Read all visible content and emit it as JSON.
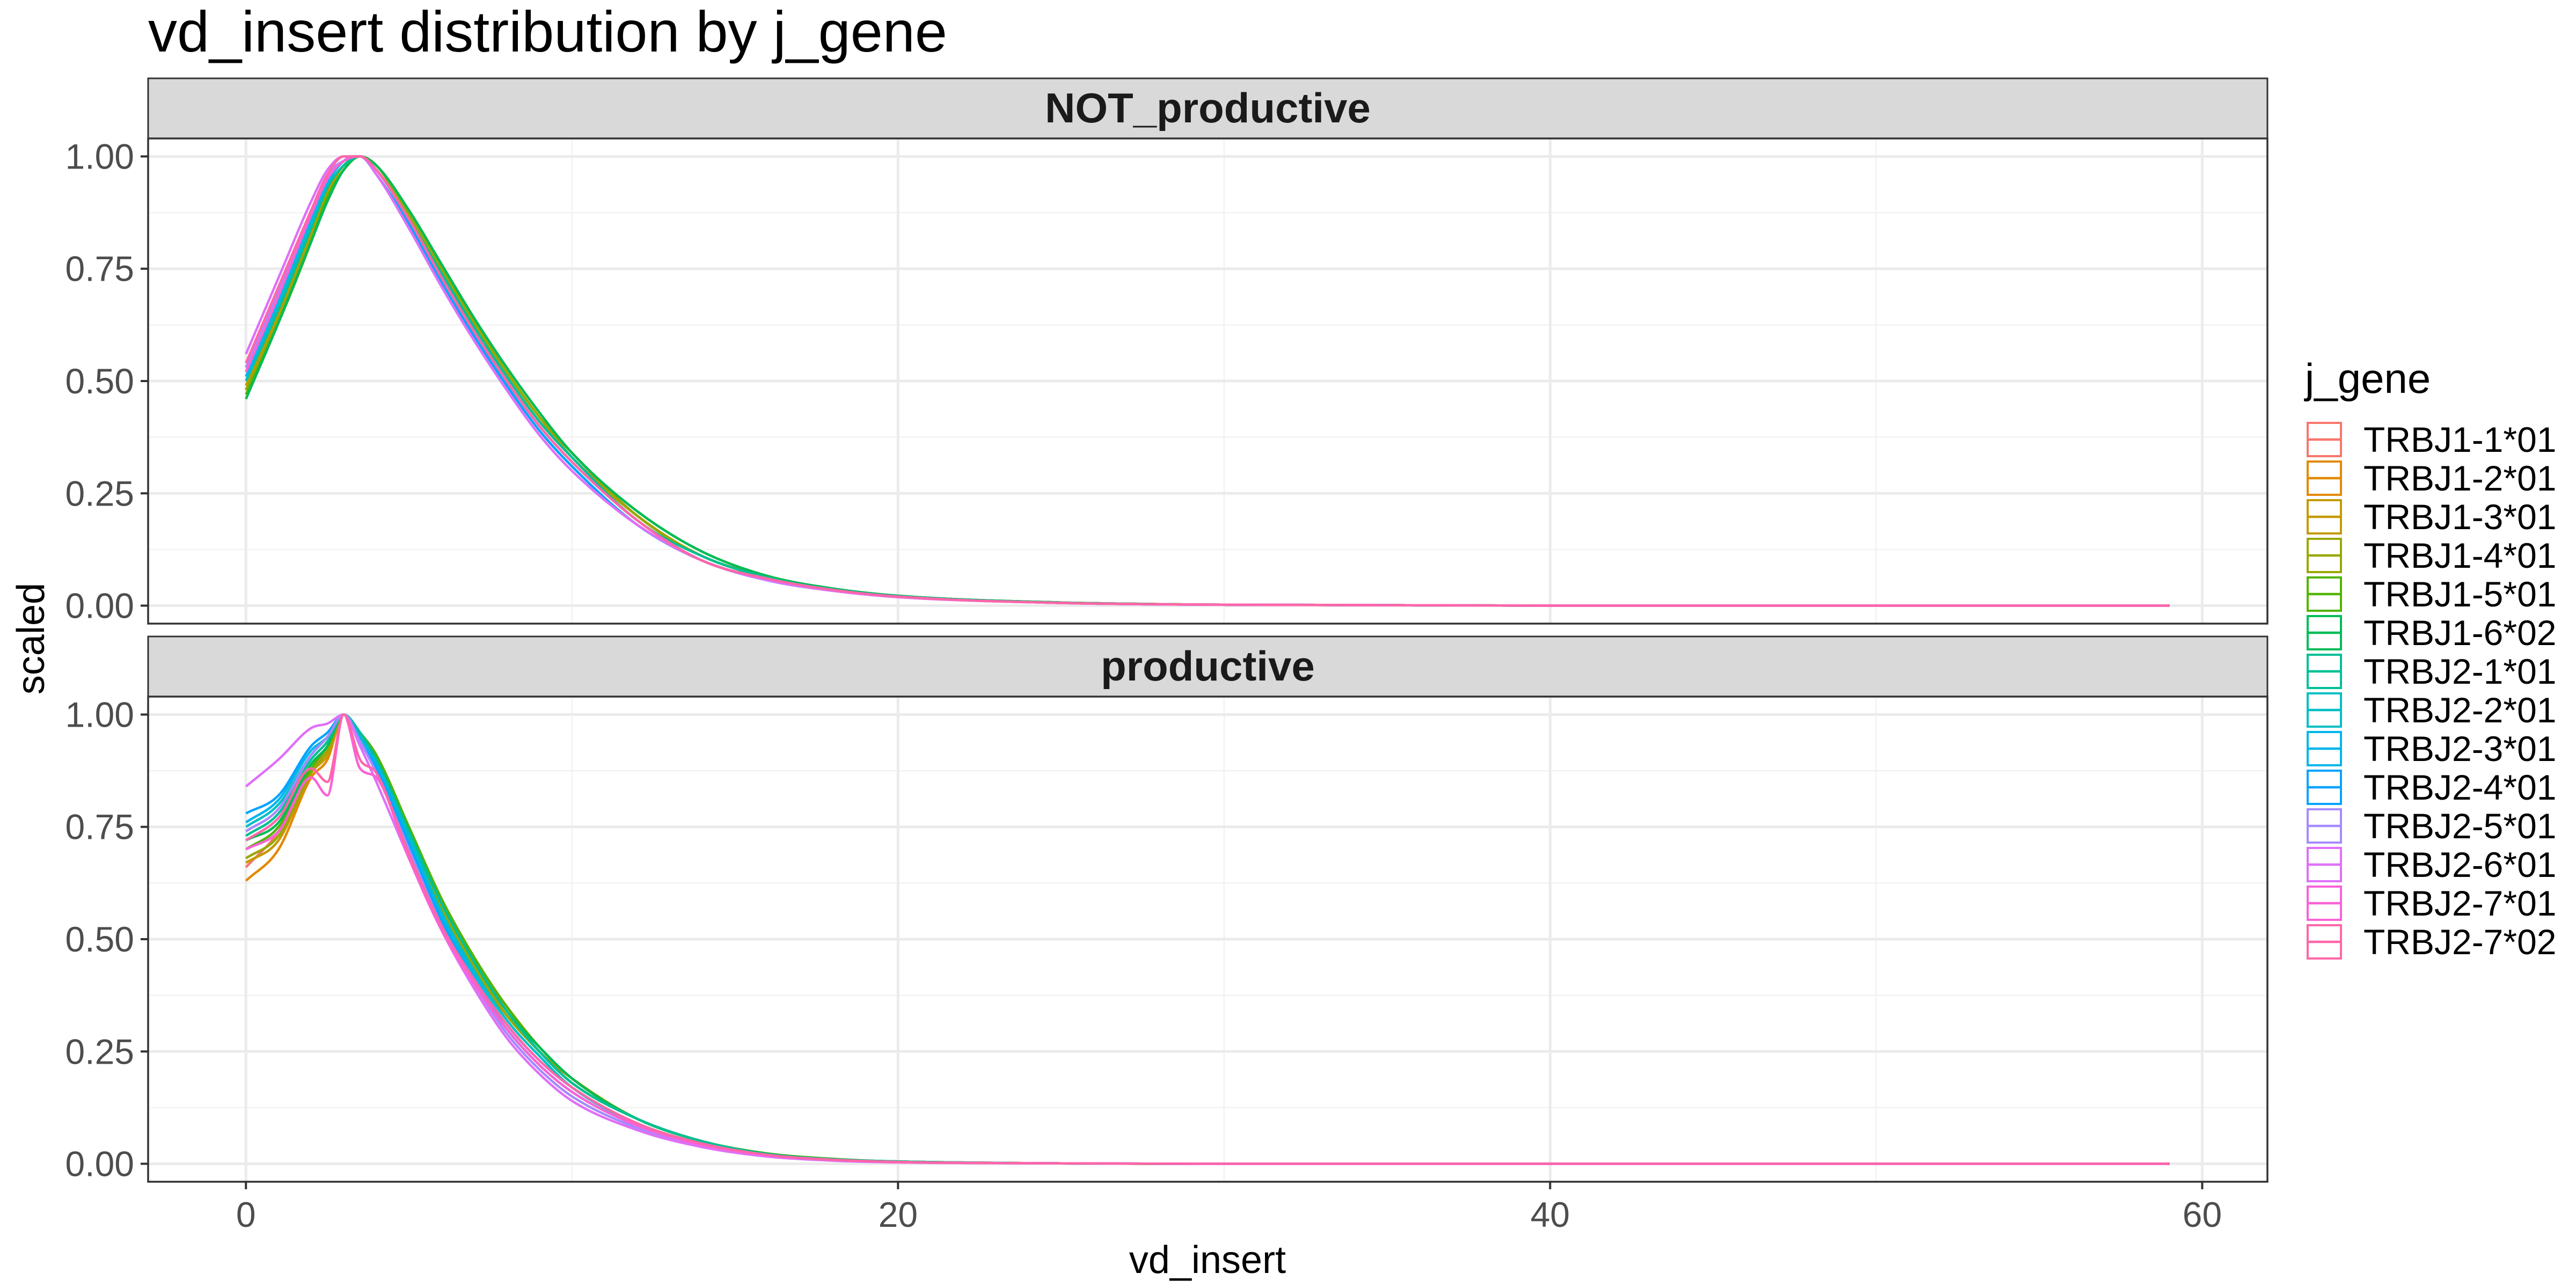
{
  "chart_data": {
    "type": "line",
    "title": "vd_insert distribution by j_gene",
    "xlabel": "vd_insert",
    "ylabel": "scaled",
    "xlim": [
      -3,
      62
    ],
    "ylim": [
      -0.04,
      1.04
    ],
    "x_ticks": [
      0,
      20,
      40,
      60
    ],
    "x_tick_labels": [
      "0",
      "20",
      "40",
      "60"
    ],
    "y_ticks": [
      0,
      0.25,
      0.5,
      0.75,
      1.0
    ],
    "y_tick_labels": [
      "0.00",
      "0.25",
      "0.50",
      "0.75",
      "1.00"
    ],
    "grid": true,
    "legend": {
      "title": "j_gene",
      "position": "right",
      "entries": [
        "TRBJ1-1*01",
        "TRBJ1-2*01",
        "TRBJ1-3*01",
        "TRBJ1-4*01",
        "TRBJ1-5*01",
        "TRBJ1-6*02",
        "TRBJ2-1*01",
        "TRBJ2-2*01",
        "TRBJ2-3*01",
        "TRBJ2-4*01",
        "TRBJ2-5*01",
        "TRBJ2-6*01",
        "TRBJ2-7*01",
        "TRBJ2-7*02"
      ]
    },
    "series_colors": [
      "#F8766D",
      "#E38900",
      "#C49A00",
      "#99A800",
      "#53B400",
      "#00BC56",
      "#00C094",
      "#00BFC4",
      "#00B6EB",
      "#06A4FF",
      "#A58AFF",
      "#DF70F8",
      "#FB61D7",
      "#FF66A8"
    ],
    "x": [
      0,
      1,
      2,
      2.5,
      3,
      3.5,
      4,
      5,
      6,
      7,
      8,
      9,
      10,
      12,
      14,
      16,
      18,
      20,
      25,
      30,
      40,
      50,
      59
    ],
    "facets": [
      {
        "label": "NOT_productive",
        "series": [
          {
            "name": "TRBJ1-1*01",
            "values": [
              0.49,
              0.66,
              0.84,
              0.93,
              0.98,
              1.0,
              0.97,
              0.87,
              0.75,
              0.63,
              0.52,
              0.42,
              0.34,
              0.2,
              0.11,
              0.065,
              0.038,
              0.022,
              0.007,
              0.002,
              0.0,
              0.0,
              0.0
            ]
          },
          {
            "name": "TRBJ1-2*01",
            "values": [
              0.48,
              0.65,
              0.83,
              0.92,
              0.98,
              1.0,
              0.97,
              0.86,
              0.74,
              0.62,
              0.51,
              0.41,
              0.33,
              0.2,
              0.11,
              0.063,
              0.037,
              0.021,
              0.007,
              0.002,
              0.0,
              0.0,
              0.0
            ]
          },
          {
            "name": "TRBJ1-3*01",
            "values": [
              0.49,
              0.65,
              0.83,
              0.92,
              0.98,
              1.0,
              0.98,
              0.87,
              0.75,
              0.63,
              0.52,
              0.42,
              0.33,
              0.2,
              0.11,
              0.064,
              0.037,
              0.021,
              0.007,
              0.002,
              0.0,
              0.0,
              0.0
            ]
          },
          {
            "name": "TRBJ1-4*01",
            "values": [
              0.48,
              0.64,
              0.82,
              0.91,
              0.97,
              1.0,
              0.98,
              0.87,
              0.75,
              0.63,
              0.52,
              0.42,
              0.34,
              0.2,
              0.11,
              0.065,
              0.038,
              0.022,
              0.007,
              0.002,
              0.0,
              0.0,
              0.0
            ]
          },
          {
            "name": "TRBJ1-5*01",
            "values": [
              0.47,
              0.63,
              0.81,
              0.91,
              0.97,
              1.0,
              0.98,
              0.88,
              0.76,
              0.64,
              0.53,
              0.43,
              0.34,
              0.21,
              0.12,
              0.066,
              0.038,
              0.022,
              0.007,
              0.002,
              0.0,
              0.0,
              0.0
            ]
          },
          {
            "name": "TRBJ1-6*02",
            "values": [
              0.46,
              0.63,
              0.81,
              0.9,
              0.97,
              1.0,
              0.98,
              0.88,
              0.76,
              0.64,
              0.53,
              0.43,
              0.34,
              0.21,
              0.12,
              0.066,
              0.038,
              0.022,
              0.007,
              0.002,
              0.0,
              0.0,
              0.0
            ]
          },
          {
            "name": "TRBJ2-1*01",
            "values": [
              0.5,
              0.66,
              0.84,
              0.93,
              0.98,
              1.0,
              0.97,
              0.86,
              0.74,
              0.62,
              0.51,
              0.41,
              0.33,
              0.19,
              0.11,
              0.062,
              0.036,
              0.021,
              0.006,
              0.002,
              0.0,
              0.0,
              0.0
            ]
          },
          {
            "name": "TRBJ2-2*01",
            "values": [
              0.5,
              0.67,
              0.85,
              0.94,
              0.99,
              1.0,
              0.97,
              0.86,
              0.73,
              0.61,
              0.5,
              0.4,
              0.32,
              0.19,
              0.1,
              0.06,
              0.035,
              0.02,
              0.006,
              0.002,
              0.0,
              0.0,
              0.0
            ]
          },
          {
            "name": "TRBJ2-3*01",
            "values": [
              0.51,
              0.68,
              0.86,
              0.94,
              0.99,
              1.0,
              0.96,
              0.85,
              0.72,
              0.6,
              0.49,
              0.39,
              0.31,
              0.18,
              0.1,
              0.058,
              0.034,
              0.02,
              0.006,
              0.002,
              0.0,
              0.0,
              0.0
            ]
          },
          {
            "name": "TRBJ2-4*01",
            "values": [
              0.52,
              0.69,
              0.87,
              0.95,
              0.99,
              1.0,
              0.96,
              0.85,
              0.72,
              0.6,
              0.49,
              0.39,
              0.31,
              0.18,
              0.1,
              0.058,
              0.034,
              0.02,
              0.006,
              0.002,
              0.0,
              0.0,
              0.0
            ]
          },
          {
            "name": "TRBJ2-5*01",
            "values": [
              0.53,
              0.7,
              0.88,
              0.96,
              0.99,
              1.0,
              0.96,
              0.84,
              0.71,
              0.59,
              0.48,
              0.38,
              0.3,
              0.18,
              0.1,
              0.056,
              0.033,
              0.019,
              0.006,
              0.002,
              0.0,
              0.0,
              0.0
            ]
          },
          {
            "name": "TRBJ2-6*01",
            "values": [
              0.56,
              0.73,
              0.9,
              0.97,
              1.0,
              1.0,
              0.96,
              0.84,
              0.71,
              0.59,
              0.48,
              0.38,
              0.3,
              0.18,
              0.1,
              0.057,
              0.033,
              0.019,
              0.006,
              0.002,
              0.0,
              0.0,
              0.0
            ]
          },
          {
            "name": "TRBJ2-7*01",
            "values": [
              0.52,
              0.69,
              0.87,
              0.95,
              0.99,
              1.0,
              0.97,
              0.86,
              0.73,
              0.61,
              0.5,
              0.4,
              0.32,
              0.19,
              0.1,
              0.06,
              0.035,
              0.02,
              0.006,
              0.002,
              0.0,
              0.0,
              0.0
            ]
          },
          {
            "name": "TRBJ2-7*02",
            "values": [
              0.54,
              0.71,
              0.88,
              0.96,
              1.0,
              1.0,
              0.97,
              0.86,
              0.73,
              0.61,
              0.5,
              0.4,
              0.32,
              0.19,
              0.1,
              0.06,
              0.035,
              0.02,
              0.006,
              0.002,
              0.0,
              0.0,
              0.0
            ]
          }
        ]
      },
      {
        "label": "productive",
        "series": [
          {
            "name": "TRBJ1-1*01",
            "values": [
              0.66,
              0.74,
              0.88,
              0.92,
              1.0,
              0.94,
              0.88,
              0.72,
              0.56,
              0.43,
              0.33,
              0.25,
              0.18,
              0.1,
              0.05,
              0.022,
              0.01,
              0.005,
              0.001,
              0.0,
              0.0,
              0.0,
              0.0
            ]
          },
          {
            "name": "TRBJ1-2*01",
            "values": [
              0.63,
              0.7,
              0.86,
              0.9,
              1.0,
              0.95,
              0.9,
              0.74,
              0.58,
              0.45,
              0.35,
              0.26,
              0.19,
              0.1,
              0.05,
              0.022,
              0.01,
              0.005,
              0.001,
              0.0,
              0.0,
              0.0,
              0.0
            ]
          },
          {
            "name": "TRBJ1-3*01",
            "values": [
              0.67,
              0.72,
              0.87,
              0.91,
              1.0,
              0.95,
              0.89,
              0.73,
              0.57,
              0.44,
              0.34,
              0.25,
              0.19,
              0.1,
              0.05,
              0.022,
              0.01,
              0.005,
              0.001,
              0.0,
              0.0,
              0.0,
              0.0
            ]
          },
          {
            "name": "TRBJ1-4*01",
            "values": [
              0.68,
              0.73,
              0.87,
              0.92,
              1.0,
              0.95,
              0.89,
              0.73,
              0.57,
              0.44,
              0.33,
              0.25,
              0.18,
              0.1,
              0.05,
              0.022,
              0.01,
              0.005,
              0.001,
              0.0,
              0.0,
              0.0,
              0.0
            ]
          },
          {
            "name": "TRBJ1-5*01",
            "values": [
              0.7,
              0.75,
              0.88,
              0.93,
              1.0,
              0.96,
              0.91,
              0.75,
              0.59,
              0.46,
              0.35,
              0.26,
              0.19,
              0.1,
              0.05,
              0.023,
              0.011,
              0.005,
              0.001,
              0.0,
              0.0,
              0.0,
              0.0
            ]
          },
          {
            "name": "TRBJ1-6*02",
            "values": [
              0.72,
              0.76,
              0.89,
              0.93,
              1.0,
              0.95,
              0.9,
              0.74,
              0.58,
              0.45,
              0.34,
              0.26,
              0.19,
              0.1,
              0.05,
              0.022,
              0.01,
              0.005,
              0.001,
              0.0,
              0.0,
              0.0,
              0.0
            ]
          },
          {
            "name": "TRBJ2-1*01",
            "values": [
              0.73,
              0.78,
              0.9,
              0.94,
              1.0,
              0.96,
              0.9,
              0.74,
              0.58,
              0.45,
              0.34,
              0.25,
              0.18,
              0.1,
              0.05,
              0.021,
              0.01,
              0.005,
              0.001,
              0.0,
              0.0,
              0.0,
              0.0
            ]
          },
          {
            "name": "TRBJ2-2*01",
            "values": [
              0.75,
              0.8,
              0.91,
              0.95,
              1.0,
              0.95,
              0.89,
              0.73,
              0.56,
              0.43,
              0.32,
              0.24,
              0.17,
              0.09,
              0.045,
              0.02,
              0.009,
              0.004,
              0.001,
              0.0,
              0.0,
              0.0,
              0.0
            ]
          },
          {
            "name": "TRBJ2-3*01",
            "values": [
              0.76,
              0.81,
              0.92,
              0.95,
              1.0,
              0.95,
              0.89,
              0.72,
              0.55,
              0.42,
              0.31,
              0.23,
              0.17,
              0.09,
              0.045,
              0.02,
              0.009,
              0.004,
              0.001,
              0.0,
              0.0,
              0.0,
              0.0
            ]
          },
          {
            "name": "TRBJ2-4*01",
            "values": [
              0.78,
              0.82,
              0.93,
              0.96,
              1.0,
              0.94,
              0.88,
              0.71,
              0.54,
              0.41,
              0.3,
              0.22,
              0.16,
              0.085,
              0.042,
              0.019,
              0.009,
              0.004,
              0.001,
              0.0,
              0.0,
              0.0,
              0.0
            ]
          },
          {
            "name": "TRBJ2-5*01",
            "values": [
              0.74,
              0.79,
              0.91,
              0.95,
              1.0,
              0.94,
              0.87,
              0.7,
              0.53,
              0.4,
              0.29,
              0.21,
              0.15,
              0.08,
              0.04,
              0.018,
              0.008,
              0.004,
              0.001,
              0.0,
              0.0,
              0.0,
              0.0
            ]
          },
          {
            "name": "TRBJ2-6*01",
            "values": [
              0.84,
              0.9,
              0.97,
              0.98,
              1.0,
              0.93,
              0.85,
              0.68,
              0.52,
              0.39,
              0.28,
              0.2,
              0.14,
              0.075,
              0.037,
              0.016,
              0.007,
              0.003,
              0.001,
              0.0,
              0.0,
              0.0,
              0.0
            ]
          },
          {
            "name": "TRBJ2-7*01",
            "values": [
              0.7,
              0.74,
              0.86,
              0.82,
              1.0,
              0.88,
              0.86,
              0.68,
              0.52,
              0.4,
              0.3,
              0.22,
              0.16,
              0.085,
              0.042,
              0.019,
              0.009,
              0.004,
              0.001,
              0.0,
              0.0,
              0.0,
              0.0
            ]
          },
          {
            "name": "TRBJ2-7*02",
            "values": [
              0.72,
              0.77,
              0.88,
              0.85,
              1.0,
              0.9,
              0.87,
              0.69,
              0.53,
              0.41,
              0.31,
              0.23,
              0.17,
              0.09,
              0.045,
              0.02,
              0.009,
              0.004,
              0.001,
              0.0,
              0.0,
              0.0,
              0.0
            ]
          }
        ]
      }
    ]
  }
}
